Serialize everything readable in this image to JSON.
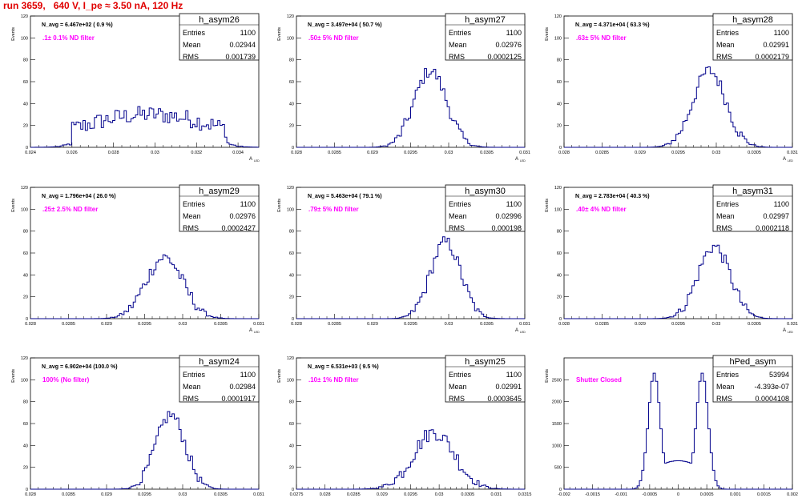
{
  "title": "run 3659,   640 V, I_pe ≈ 3.50 nA, 120 Hz",
  "colors": {
    "histogram": "#00008b",
    "annotation": "#ff00ff",
    "title": "#e00000",
    "frame": "#000000"
  },
  "chart_data": [
    {
      "type": "bar",
      "name": "h_asym26",
      "stats": {
        "entries_label": "Entries",
        "entries": "1100",
        "mean_label": "Mean",
        "mean": "0.02944",
        "rms_label": "RMS",
        "rms": "0.001739"
      },
      "navg": "N_avg = 6.467e+02 (  0.9 %)",
      "filter": ".1± 0.1% ND filter",
      "ylabel": "Events",
      "xlabel": "A",
      "xlim": [
        0.024,
        0.035
      ],
      "ylim": [
        0,
        120
      ],
      "xticks": [
        0.024,
        0.026,
        0.028,
        0.03,
        0.032,
        0.034
      ],
      "xtick_labels": [
        "0.024",
        "0.026",
        "0.028",
        "0.03",
        "0.032",
        "0.034"
      ],
      "yticks": [
        0,
        20,
        40,
        60,
        80,
        100,
        120
      ],
      "ytick_labels": [
        "0",
        "20",
        "40",
        "60",
        "80",
        "100",
        "120"
      ],
      "dist": {
        "kind": "flat",
        "lo": 0.026,
        "hi": 0.0335,
        "peak": 30,
        "noise": 8
      }
    },
    {
      "type": "bar",
      "name": "h_asym27",
      "stats": {
        "entries_label": "Entries",
        "entries": "1100",
        "mean_label": "Mean",
        "mean": "0.02976",
        "rms_label": "RMS",
        "rms": "0.0002125"
      },
      "navg": "N_avg = 3.497e+04 ( 50.7 %)",
      "filter": ".50± 5% ND filter",
      "ylabel": "Events",
      "xlabel": "A",
      "xlim": [
        0.028,
        0.031
      ],
      "ylim": [
        0,
        120
      ],
      "xticks": [
        0.028,
        0.0285,
        0.029,
        0.0295,
        0.03,
        0.0305,
        0.031
      ],
      "xtick_labels": [
        "0.028",
        "0.0285",
        "0.029",
        "0.0295",
        "0.03",
        "0.0305",
        "0.031"
      ],
      "yticks": [
        0,
        20,
        40,
        60,
        80,
        100,
        120
      ],
      "ytick_labels": [
        "0",
        "20",
        "40",
        "60",
        "80",
        "100",
        "120"
      ],
      "dist": {
        "kind": "gauss",
        "mean": 0.02976,
        "sigma": 0.0002125,
        "peak": 70,
        "noise": 6
      }
    },
    {
      "type": "bar",
      "name": "h_asym28",
      "stats": {
        "entries_label": "Entries",
        "entries": "1100",
        "mean_label": "Mean",
        "mean": "0.02991",
        "rms_label": "RMS",
        "rms": "0.0002179"
      },
      "navg": "N_avg = 4.371e+04 ( 63.3 %)",
      "filter": ".63± 5% ND filter",
      "ylabel": "Events",
      "xlabel": "A",
      "xlim": [
        0.028,
        0.031
      ],
      "ylim": [
        0,
        120
      ],
      "xticks": [
        0.028,
        0.0285,
        0.029,
        0.0295,
        0.03,
        0.0305,
        0.031
      ],
      "xtick_labels": [
        "0.028",
        "0.0285",
        "0.029",
        "0.0295",
        "0.03",
        "0.0305",
        "0.031"
      ],
      "yticks": [
        0,
        20,
        40,
        60,
        80,
        100,
        120
      ],
      "ytick_labels": [
        "0",
        "20",
        "40",
        "60",
        "80",
        "100",
        "120"
      ],
      "dist": {
        "kind": "gauss",
        "mean": 0.02991,
        "sigma": 0.0002179,
        "peak": 70,
        "noise": 6
      }
    },
    {
      "type": "bar",
      "name": "h_asym29",
      "stats": {
        "entries_label": "Entries",
        "entries": "1100",
        "mean_label": "Mean",
        "mean": "0.02976",
        "rms_label": "RMS",
        "rms": "0.0002427"
      },
      "navg": "N_avg = 1.796e+04 ( 26.0 %)",
      "filter": ".25± 2.5% ND filter",
      "ylabel": "Events",
      "xlabel": "A",
      "xlim": [
        0.028,
        0.031
      ],
      "ylim": [
        0,
        120
      ],
      "xticks": [
        0.028,
        0.0285,
        0.029,
        0.0295,
        0.03,
        0.0305,
        0.031
      ],
      "xtick_labels": [
        "0.028",
        "0.0285",
        "0.029",
        "0.0295",
        "0.03",
        "0.0305",
        "0.031"
      ],
      "yticks": [
        0,
        20,
        40,
        60,
        80,
        100,
        120
      ],
      "ytick_labels": [
        "0",
        "20",
        "40",
        "60",
        "80",
        "100",
        "120"
      ],
      "dist": {
        "kind": "gauss",
        "mean": 0.02976,
        "sigma": 0.0002427,
        "peak": 56,
        "noise": 6
      }
    },
    {
      "type": "bar",
      "name": "h_asym30",
      "stats": {
        "entries_label": "Entries",
        "entries": "1100",
        "mean_label": "Mean",
        "mean": "0.02996",
        "rms_label": "RMS",
        "rms": "0.000198"
      },
      "navg": "N_avg = 5.463e+04 ( 79.1 %)",
      "filter": ".79± 5% ND filter",
      "ylabel": "Events",
      "xlabel": "A",
      "xlim": [
        0.028,
        0.031
      ],
      "ylim": [
        0,
        120
      ],
      "xticks": [
        0.028,
        0.0285,
        0.029,
        0.0295,
        0.03,
        0.0305,
        0.031
      ],
      "xtick_labels": [
        "0.028",
        "0.0285",
        "0.029",
        "0.0295",
        "0.03",
        "0.0305",
        "0.031"
      ],
      "yticks": [
        0,
        20,
        40,
        60,
        80,
        100,
        120
      ],
      "ytick_labels": [
        "0",
        "20",
        "40",
        "60",
        "80",
        "100",
        "120"
      ],
      "dist": {
        "kind": "gauss",
        "mean": 0.02996,
        "sigma": 0.000198,
        "peak": 70,
        "noise": 6
      }
    },
    {
      "type": "bar",
      "name": "h_asym31",
      "stats": {
        "entries_label": "Entries",
        "entries": "1100",
        "mean_label": "Mean",
        "mean": "0.02997",
        "rms_label": "RMS",
        "rms": "0.0002118"
      },
      "navg": "N_avg = 2.783e+04 ( 40.3 %)",
      "filter": ".40± 4% ND filter",
      "ylabel": "Events",
      "xlabel": "A",
      "xlim": [
        0.028,
        0.031
      ],
      "ylim": [
        0,
        120
      ],
      "xticks": [
        0.028,
        0.0285,
        0.029,
        0.0295,
        0.03,
        0.0305,
        0.031
      ],
      "xtick_labels": [
        "0.028",
        "0.0285",
        "0.029",
        "0.0295",
        "0.03",
        "0.0305",
        "0.031"
      ],
      "yticks": [
        0,
        20,
        40,
        60,
        80,
        100,
        120
      ],
      "ytick_labels": [
        "0",
        "20",
        "40",
        "60",
        "80",
        "100",
        "120"
      ],
      "dist": {
        "kind": "gauss",
        "mean": 0.02997,
        "sigma": 0.0002118,
        "peak": 66,
        "noise": 6
      }
    },
    {
      "type": "bar",
      "name": "h_asym24",
      "stats": {
        "entries_label": "Entries",
        "entries": "1100",
        "mean_label": "Mean",
        "mean": "0.02984",
        "rms_label": "RMS",
        "rms": "0.0001917"
      },
      "navg": "N_avg = 6.902e+04 (100.0 %)",
      "filter": "100% (No filter)",
      "ylabel": "Events",
      "xlabel": "A",
      "xlim": [
        0.028,
        0.031
      ],
      "ylim": [
        0,
        120
      ],
      "xticks": [
        0.028,
        0.0285,
        0.029,
        0.0295,
        0.03,
        0.0305,
        0.031
      ],
      "xtick_labels": [
        "0.028",
        "0.0285",
        "0.029",
        "0.0295",
        "0.03",
        "0.0305",
        "0.031"
      ],
      "yticks": [
        0,
        20,
        40,
        60,
        80,
        100,
        120
      ],
      "ytick_labels": [
        "0",
        "20",
        "40",
        "60",
        "80",
        "100",
        "120"
      ],
      "dist": {
        "kind": "gauss",
        "mean": 0.02984,
        "sigma": 0.0001917,
        "peak": 68,
        "noise": 6
      }
    },
    {
      "type": "bar",
      "name": "h_asym25",
      "stats": {
        "entries_label": "Entries",
        "entries": "1100",
        "mean_label": "Mean",
        "mean": "0.02991",
        "rms_label": "RMS",
        "rms": "0.0003645"
      },
      "navg": "N_avg = 6.531e+03 (  9.5 %)",
      "filter": ".10± 1% ND filter",
      "ylabel": "Events",
      "xlabel": "A",
      "xlim": [
        0.0275,
        0.0315
      ],
      "ylim": [
        0,
        120
      ],
      "xticks": [
        0.0275,
        0.028,
        0.0285,
        0.029,
        0.0295,
        0.03,
        0.0305,
        0.031,
        0.0315
      ],
      "xtick_labels": [
        "0.0275",
        "0.028",
        "0.0285",
        "0.029",
        "0.0295",
        "0.03",
        "0.0305",
        "0.031",
        "0.0315"
      ],
      "yticks": [
        0,
        20,
        40,
        60,
        80,
        100,
        120
      ],
      "ytick_labels": [
        "0",
        "20",
        "40",
        "60",
        "80",
        "100",
        "120"
      ],
      "dist": {
        "kind": "gauss",
        "mean": 0.02991,
        "sigma": 0.0003645,
        "peak": 52,
        "noise": 7
      }
    },
    {
      "type": "bar",
      "name": "hPed_asym",
      "stats": {
        "entries_label": "Entries",
        "entries": "53994",
        "mean_label": "Mean",
        "mean": "-4.393e-07",
        "rms_label": "RMS",
        "rms": "0.0004108"
      },
      "navg": "",
      "filter": "Shutter Closed",
      "ylabel": "Events",
      "xlabel": "",
      "xlim": [
        -0.002,
        0.002
      ],
      "ylim": [
        0,
        3000
      ],
      "xticks": [
        -0.002,
        -0.0015,
        -0.001,
        -0.0005,
        0,
        0.0005,
        0.001,
        0.0015,
        0.002
      ],
      "xtick_labels": [
        "-0.002",
        "-0.0015",
        "-0.001",
        "-0.0005",
        "0",
        "0.0005",
        "0.001",
        "0.0015",
        "0.002"
      ],
      "yticks": [
        0,
        500,
        1000,
        1500,
        2000,
        2500
      ],
      "ytick_labels": [
        "0",
        "500",
        "1000",
        "1500",
        "2000",
        "2500"
      ],
      "dist": {
        "kind": "double",
        "mean1": -0.00042,
        "mean2": 0.00042,
        "sigma": 0.000105,
        "peak": 2650,
        "valley": 650,
        "noise": 0
      }
    }
  ]
}
